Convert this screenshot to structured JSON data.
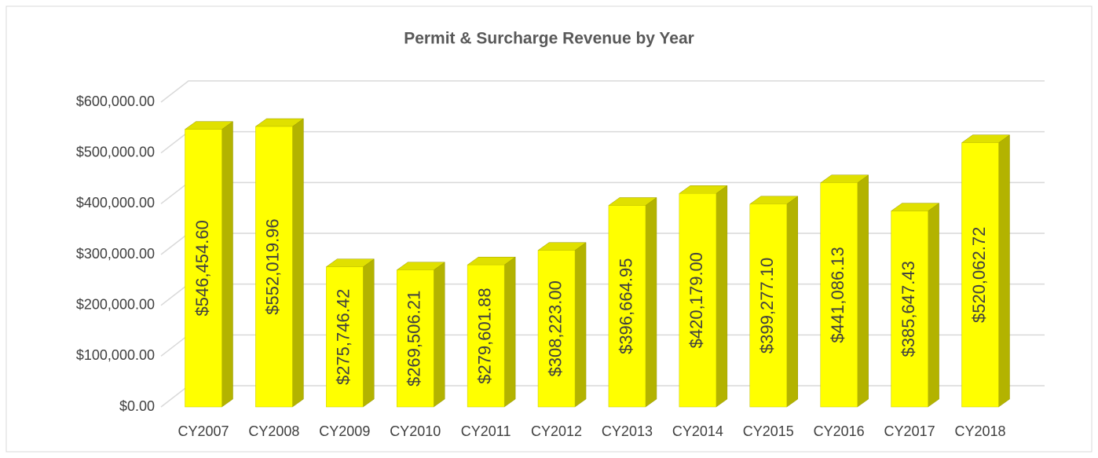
{
  "chart_data": {
    "type": "bar3d",
    "title": "Permit & Surcharge Revenue by Year",
    "categories": [
      "CY2007",
      "CY2008",
      "CY2009",
      "CY2010",
      "CY2011",
      "CY2012",
      "CY2013",
      "CY2014",
      "CY2015",
      "CY2016",
      "CY2017",
      "CY2018"
    ],
    "values": [
      546454.6,
      552019.96,
      275746.42,
      269506.21,
      279601.88,
      308223.0,
      396664.95,
      420179.0,
      399277.1,
      441086.13,
      385647.43,
      520062.72
    ],
    "value_labels": [
      "$546,454.60",
      "$552,019.96",
      "$275,746.42",
      "$269,506.21",
      "$279,601.88",
      "$308,223.00",
      "$396,664.95",
      "$420,179.00",
      "$399,277.10",
      "$441,086.13",
      "$385,647.43",
      "$520,062.72"
    ],
    "color": "#ffff00",
    "ylim": [
      0,
      600000
    ],
    "yticks": [
      {
        "value": 0,
        "label": "$0.00"
      },
      {
        "value": 100000,
        "label": "$100,000.00"
      },
      {
        "value": 200000,
        "label": "$200,000.00"
      },
      {
        "value": 300000,
        "label": "$300,000.00"
      },
      {
        "value": 400000,
        "label": "$400,000.00"
      },
      {
        "value": 500000,
        "label": "$500,000.00"
      },
      {
        "value": 600000,
        "label": "$600,000.00"
      }
    ],
    "grid": true
  }
}
